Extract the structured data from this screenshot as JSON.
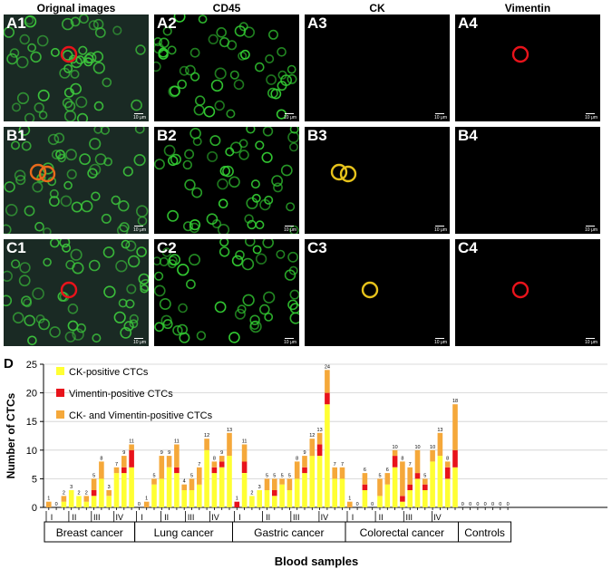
{
  "columns": [
    "Orignal images",
    "CD45",
    "CK",
    "Vimentin"
  ],
  "panels": [
    {
      "label": "A1",
      "kind": "original",
      "cell": "red"
    },
    {
      "label": "A2",
      "kind": "cd45",
      "cell": "none"
    },
    {
      "label": "A3",
      "kind": "stain",
      "cell": "none"
    },
    {
      "label": "A4",
      "kind": "stain",
      "cell": "red"
    },
    {
      "label": "B1",
      "kind": "original",
      "cell": "orange"
    },
    {
      "label": "B2",
      "kind": "cd45",
      "cell": "none"
    },
    {
      "label": "B3",
      "kind": "stain",
      "cell": "yellow"
    },
    {
      "label": "B4",
      "kind": "stain",
      "cell": "none"
    },
    {
      "label": "C1",
      "kind": "original",
      "cell": "red"
    },
    {
      "label": "C2",
      "kind": "cd45",
      "cell": "none"
    },
    {
      "label": "C3",
      "kind": "stain",
      "cell": "yellow"
    },
    {
      "label": "C4",
      "kind": "stain",
      "cell": "red"
    }
  ],
  "scale_bar_text": "10 μm",
  "panel_d_label": "D",
  "colors": {
    "ck": "#ffff33",
    "vim": "#e8131b",
    "both": "#f5a83a",
    "cd45": "#33cc33"
  },
  "chart_data": {
    "type": "bar",
    "stacked": true,
    "ylabel": "Number of CTCs",
    "xlabel": "Blood samples",
    "ylim": [
      0,
      25
    ],
    "yticks": [
      0,
      5,
      10,
      15,
      20,
      25
    ],
    "legend": [
      "CK-positive CTCs",
      "Vimentin-positive CTCs",
      "CK- and Vimentin-positive CTCs"
    ],
    "legend_position": "top-left",
    "groups": [
      {
        "name": "Breast cancer",
        "stages": [
          "I",
          "II",
          "III",
          "IV"
        ],
        "samples": [
          [
            0,
            0,
            1
          ],
          [
            0,
            0,
            0
          ],
          [
            1,
            0,
            1
          ],
          [
            3,
            0,
            0
          ],
          [
            2,
            0,
            0
          ],
          [
            1,
            0,
            1
          ],
          [
            2,
            1,
            2
          ],
          [
            5,
            0,
            3
          ],
          [
            2,
            0,
            1
          ],
          [
            6,
            0,
            1
          ],
          [
            6,
            1,
            2
          ],
          [
            7,
            3,
            1
          ]
        ]
      },
      {
        "name": "Lung cancer",
        "stages": [
          "I",
          "II",
          "III",
          "IV"
        ],
        "samples": [
          [
            0,
            0,
            0
          ],
          [
            0,
            0,
            1
          ],
          [
            4,
            0,
            1
          ],
          [
            5,
            0,
            4
          ],
          [
            7,
            0,
            2
          ],
          [
            6,
            1,
            4
          ],
          [
            3,
            0,
            1
          ],
          [
            3,
            0,
            2
          ],
          [
            4,
            0,
            3
          ],
          [
            10,
            0,
            2
          ],
          [
            6,
            1,
            1
          ],
          [
            7,
            1,
            1
          ],
          [
            9,
            0,
            4
          ]
        ]
      },
      {
        "name": "Gastric cancer",
        "stages": [
          "I",
          "II",
          "III",
          "IV"
        ],
        "samples": [
          [
            0,
            1,
            0
          ],
          [
            6,
            2,
            3
          ],
          [
            2,
            0,
            0
          ],
          [
            3,
            0,
            0
          ],
          [
            3,
            0,
            2
          ],
          [
            2,
            1,
            2
          ],
          [
            4,
            0,
            1
          ],
          [
            3,
            0,
            2
          ],
          [
            5,
            0,
            3
          ],
          [
            6,
            1,
            2
          ],
          [
            9,
            0,
            3
          ],
          [
            9,
            2,
            2
          ],
          [
            18,
            2,
            4
          ],
          [
            5,
            0,
            2
          ],
          [
            5,
            0,
            2
          ]
        ]
      },
      {
        "name": "Colorectal cancer",
        "stages": [
          "I",
          "II",
          "III",
          "IV"
        ],
        "samples": [
          [
            0,
            0,
            1
          ],
          [
            0,
            0,
            0
          ],
          [
            3,
            1,
            2
          ],
          [
            0,
            0,
            0
          ],
          [
            2,
            0,
            3
          ],
          [
            4,
            0,
            2
          ],
          [
            7,
            2,
            1
          ],
          [
            1,
            1,
            6
          ],
          [
            3,
            1,
            3
          ],
          [
            5,
            1,
            4
          ],
          [
            3,
            1,
            1
          ],
          [
            8,
            0,
            2
          ],
          [
            9,
            0,
            4
          ],
          [
            5,
            2,
            1
          ],
          [
            7,
            3,
            8
          ]
        ]
      },
      {
        "name": "Controls",
        "stages": [],
        "samples": [
          [
            0,
            0,
            0
          ],
          [
            0,
            0,
            0
          ],
          [
            0,
            0,
            0
          ],
          [
            0,
            0,
            0
          ],
          [
            0,
            0,
            0
          ],
          [
            0,
            0,
            0
          ],
          [
            0,
            0,
            0
          ]
        ]
      }
    ]
  }
}
